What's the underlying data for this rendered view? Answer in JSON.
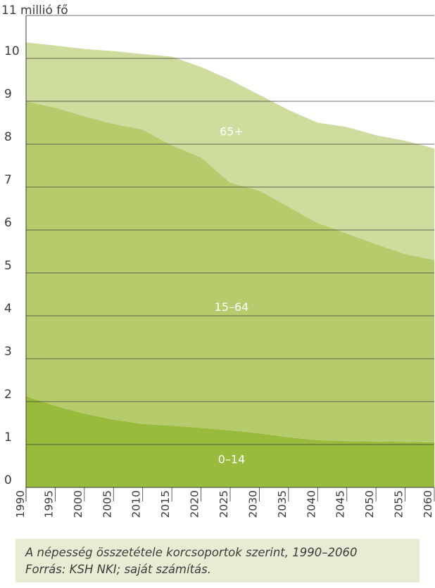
{
  "chart_data": {
    "type": "area",
    "stacked": true,
    "unit_label": "11 millió fő",
    "x": [
      1990,
      1995,
      2000,
      2005,
      2010,
      2015,
      2020,
      2025,
      2030,
      2035,
      2040,
      2045,
      2050,
      2055,
      2060
    ],
    "x_tick_labels": [
      "1990",
      "1995",
      "2000",
      "2005",
      "2010",
      "2015",
      "2020",
      "2025",
      "2030",
      "2035",
      "2040",
      "2045",
      "2050",
      "2055",
      "2060"
    ],
    "y_tick_labels": [
      "0",
      "1",
      "2",
      "3",
      "4",
      "5",
      "6",
      "7",
      "8",
      "9",
      "10"
    ],
    "ylim": [
      0,
      11
    ],
    "grid": true,
    "series": [
      {
        "name": "0–14",
        "color": "#98bb3b",
        "values": [
          2.13,
          1.9,
          1.72,
          1.58,
          1.48,
          1.44,
          1.39,
          1.33,
          1.26,
          1.17,
          1.1,
          1.08,
          1.07,
          1.06,
          1.05
        ]
      },
      {
        "name": "15–64",
        "color": "#b5cb6c",
        "values": [
          6.87,
          6.95,
          6.93,
          6.89,
          6.86,
          6.53,
          6.3,
          5.77,
          5.66,
          5.37,
          5.06,
          4.84,
          4.6,
          4.38,
          4.25
        ]
      },
      {
        "name": "65+",
        "color": "#cedc9d",
        "values": [
          1.37,
          1.45,
          1.57,
          1.7,
          1.76,
          2.07,
          2.11,
          2.4,
          2.23,
          2.26,
          2.34,
          2.48,
          2.54,
          2.64,
          2.6
        ]
      }
    ]
  },
  "caption": {
    "line1": "A népesség összetétele korcsoportok szerint, 1990–2060",
    "line2": "Forrás: KSH NKI; saját számítás."
  }
}
